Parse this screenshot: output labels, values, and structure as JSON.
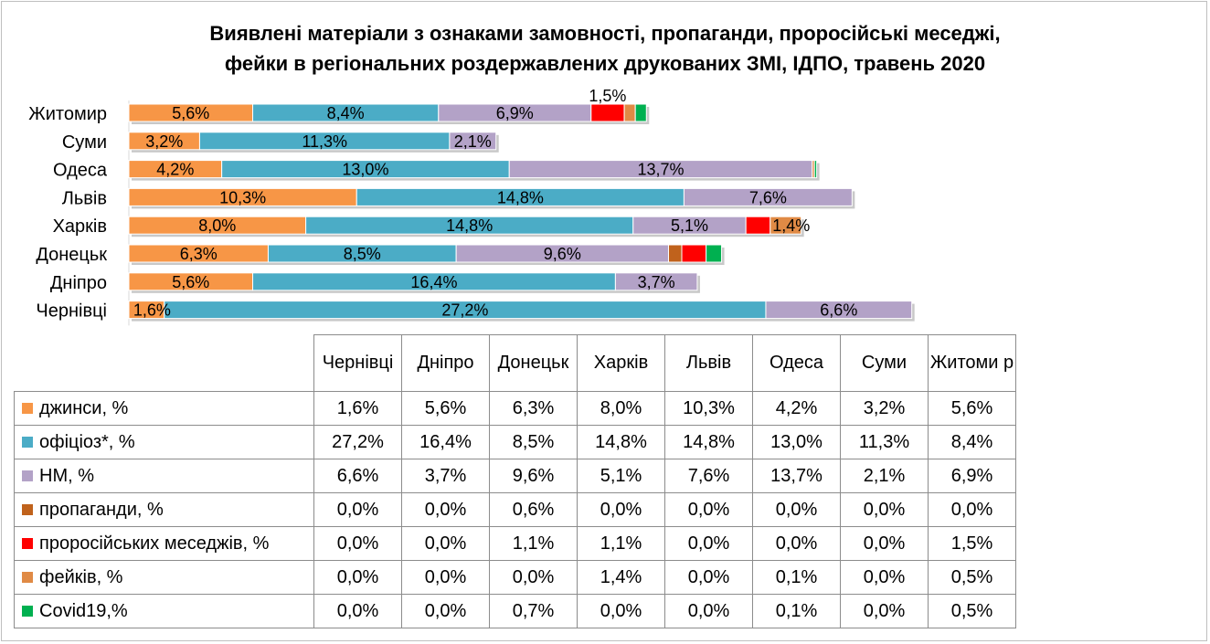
{
  "title_lines": [
    "Виявлені матеріали з ознаками замовності, пропаганди, проросійські меседжі,",
    "фейки в регіональних роздержавлених друкованих ЗМІ, ІДПО, травень 2020"
  ],
  "chart_data": {
    "type": "bar",
    "orientation": "horizontal",
    "stacked": true,
    "title": "Виявлені матеріали з ознаками замовності, пропаганди, проросійські меседжі, фейки в регіональних роздержавлених друкованих ЗМІ, ІДПО, травень 2020",
    "categories": [
      "Чернівці",
      "Дніпро",
      "Донецьк",
      "Харків",
      "Львів",
      "Одеса",
      "Суми",
      "Житомир"
    ],
    "category_labels": [
      "Чернівці",
      "Дніпро",
      "Донецьк",
      "Харків",
      "Львів",
      "Одеса",
      "Суми",
      "Житоми р"
    ],
    "series": [
      {
        "name": "джинси, %",
        "color": "#f79646",
        "values": [
          1.6,
          5.6,
          6.3,
          8.0,
          10.3,
          4.2,
          3.2,
          5.6
        ],
        "labels": [
          "1,6%",
          "5,6%",
          "6,3%",
          "8,0%",
          "10,3%",
          "4,2%",
          "3,2%",
          "5,6%"
        ]
      },
      {
        "name": "офіціоз*, %",
        "color": "#4bacc6",
        "values": [
          27.2,
          16.4,
          8.5,
          14.8,
          14.8,
          13.0,
          11.3,
          8.4
        ],
        "labels": [
          "27,2%",
          "16,4%",
          "8,5%",
          "14,8%",
          "14,8%",
          "13,0%",
          "11,3%",
          "8,4%"
        ]
      },
      {
        "name": "НМ, %",
        "color": "#b3a2c7",
        "values": [
          6.6,
          3.7,
          9.6,
          5.1,
          7.6,
          13.7,
          2.1,
          6.9
        ],
        "labels": [
          "6,6%",
          "3,7%",
          "9,6%",
          "5,1%",
          "7,6%",
          "13,7%",
          "2,1%",
          "6,9%"
        ]
      },
      {
        "name": "пропаганди, %",
        "color": "#c0621c",
        "values": [
          0.0,
          0.0,
          0.6,
          0.0,
          0.0,
          0.0,
          0.0,
          0.0
        ],
        "labels": [
          "0,0%",
          "0,0%",
          "0,6%",
          "0,0%",
          "0,0%",
          "0,0%",
          "0,0%",
          "0,0%"
        ]
      },
      {
        "name": "проросійських меседжів, %",
        "color": "#ff0000",
        "values": [
          0.0,
          0.0,
          1.1,
          1.1,
          0.0,
          0.0,
          0.0,
          1.5
        ],
        "labels": [
          "0,0%",
          "0,0%",
          "1,1%",
          "1,1%",
          "0,0%",
          "0,0%",
          "0,0%",
          "1,5%"
        ]
      },
      {
        "name": "фейків, %",
        "color": "#e08a45",
        "values": [
          0.0,
          0.0,
          0.0,
          1.4,
          0.0,
          0.1,
          0.0,
          0.5
        ],
        "labels": [
          "0,0%",
          "0,0%",
          "0,0%",
          "1,4%",
          "0,0%",
          "0,1%",
          "0,0%",
          "0,5%"
        ]
      },
      {
        "name": "Covid19,%",
        "color": "#00b050",
        "values": [
          0.0,
          0.0,
          0.7,
          0.0,
          0.0,
          0.1,
          0.0,
          0.5
        ],
        "labels": [
          "0,0%",
          "0,0%",
          "0,7%",
          "0,0%",
          "0,0%",
          "0,1%",
          "0,0%",
          "0,5%"
        ]
      }
    ],
    "bar_data_labels": [
      {
        "category": "Житомир",
        "series": [
          "джинси, %",
          "офіціоз*, %",
          "НМ, %",
          "проросійських меседжів, %"
        ]
      },
      {
        "category": "Суми",
        "series": [
          "джинси, %",
          "офіціоз*, %",
          "НМ, %"
        ]
      },
      {
        "category": "Одеса",
        "series": [
          "джинси, %",
          "офіціоз*, %",
          "НМ, %"
        ]
      },
      {
        "category": "Львів",
        "series": [
          "джинси, %",
          "офіціоз*, %",
          "НМ, %"
        ]
      },
      {
        "category": "Харків",
        "series": [
          "джинси, %",
          "офіціоз*, %",
          "НМ, %",
          "фейків, %"
        ]
      },
      {
        "category": "Донецьк",
        "series": [
          "джинси, %",
          "офіціоз*, %",
          "НМ, %"
        ]
      },
      {
        "category": "Дніпро",
        "series": [
          "джинси, %",
          "офіціоз*, %",
          "НМ, %"
        ]
      },
      {
        "category": "Чернівці",
        "series": [
          "джинси, %",
          "офіціоз*, %",
          "НМ, %"
        ]
      }
    ],
    "bar_order_top_to_bottom": [
      "Житомир",
      "Суми",
      "Одеса",
      "Львів",
      "Харків",
      "Донецьк",
      "Дніпро",
      "Чернівці"
    ],
    "legend": "data table below chart",
    "grid": false,
    "xlim": [
      0,
      36
    ]
  }
}
